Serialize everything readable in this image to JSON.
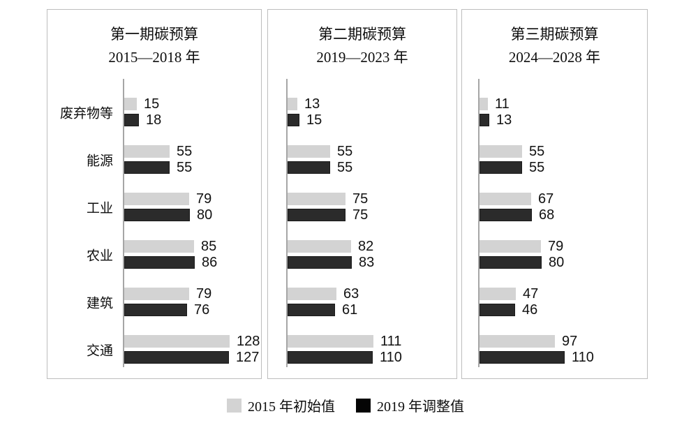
{
  "chart_data": {
    "type": "bar",
    "orientation": "horizontal",
    "categories": [
      "废弃物等",
      "能源",
      "工业",
      "农业",
      "建筑",
      "交通"
    ],
    "series_names": [
      "2015 年初始值",
      "2019 年调整值"
    ],
    "series_colors": [
      "#d3d3d3",
      "#2b2b2b"
    ],
    "panels": [
      {
        "title": "第一期碳预算",
        "subtitle": "2015—2018 年",
        "series": [
          {
            "name": "2015 年初始值",
            "values": [
              15,
              55,
              79,
              85,
              79,
              128
            ]
          },
          {
            "name": "2019 年调整值",
            "values": [
              18,
              55,
              80,
              86,
              76,
              127
            ]
          }
        ]
      },
      {
        "title": "第二期碳预算",
        "subtitle": "2019—2023 年",
        "series": [
          {
            "name": "2015 年初始值",
            "values": [
              13,
              55,
              75,
              82,
              63,
              111
            ]
          },
          {
            "name": "2019 年调整值",
            "values": [
              15,
              55,
              75,
              83,
              61,
              110
            ]
          }
        ]
      },
      {
        "title": "第三期碳预算",
        "subtitle": "2024—2028 年",
        "series": [
          {
            "name": "2015 年初始值",
            "values": [
              11,
              55,
              67,
              79,
              47,
              97
            ]
          },
          {
            "name": "2019 年调整值",
            "values": [
              13,
              55,
              68,
              80,
              46,
              110
            ]
          }
        ]
      }
    ],
    "legend": [
      {
        "label": "2015 年初始值",
        "color": "#d3d3d3"
      },
      {
        "label": "2019 年调整值",
        "color": "#050505"
      }
    ],
    "layout": {
      "legend_position": "bottom",
      "grid": false,
      "value_labels": "end-of-bar",
      "xlim": [
        0,
        135
      ],
      "category_labels_shown_on": "first_panel_only"
    }
  }
}
